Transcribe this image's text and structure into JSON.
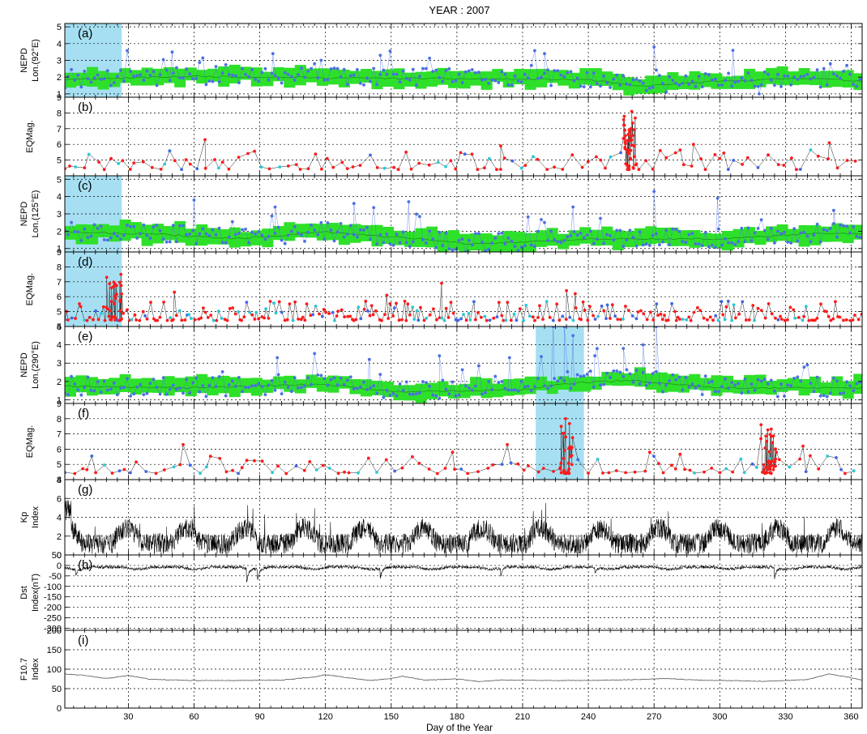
{
  "chart_data": {
    "type": "line",
    "title": "YEAR : 2007",
    "xlabel": "Day of the Year",
    "xlim": [
      1,
      365
    ],
    "x_ticks": [
      30,
      60,
      90,
      120,
      150,
      180,
      210,
      240,
      270,
      300,
      330,
      360
    ],
    "grid": true,
    "highlight_color": "#a6dff2",
    "panels": [
      {
        "id": "a",
        "label": "(a)",
        "ylabel": [
          "NEPD",
          "Lon.(92°E)"
        ],
        "ylim": [
          0.8,
          5.2
        ],
        "y_ticks": [
          1,
          2,
          3,
          4,
          5
        ],
        "kind": "nepd",
        "seed": 11,
        "base_curve": [
          [
            1,
            1.9
          ],
          [
            60,
            2.1
          ],
          [
            130,
            2.0
          ],
          [
            240,
            1.9
          ],
          [
            263,
            1.5
          ],
          [
            300,
            1.8
          ],
          [
            340,
            2.0
          ],
          [
            365,
            1.8
          ]
        ],
        "band_halfwidth": 0.5,
        "spikes": [
          [
            50,
            3.5
          ],
          [
            96,
            3.4
          ],
          [
            145,
            3.3
          ],
          [
            220,
            3.4
          ],
          [
            270,
            3.8
          ],
          [
            306,
            3.6
          ],
          [
            318,
            1.0
          ]
        ],
        "highlight": [
          1,
          27
        ]
      },
      {
        "id": "b",
        "label": "(b)",
        "ylabel": [
          "EQMag."
        ],
        "ylim": [
          4,
          9
        ],
        "y_ticks": [
          5,
          6,
          7,
          8,
          9
        ],
        "kind": "eq",
        "seed": 21,
        "sparse": true,
        "bursts": [
          [
            256,
            262,
            8.1,
            45
          ]
        ],
        "big": [
          [
            65,
            6.3
          ],
          [
            200,
            5.9
          ],
          [
            288,
            6.0
          ],
          [
            350,
            6.1
          ]
        ]
      },
      {
        "id": "c",
        "label": "(c)",
        "ylabel": [
          "NEPD",
          "Lon.(125°E)"
        ],
        "ylim": [
          0.8,
          5.2
        ],
        "y_ticks": [
          1,
          2,
          3,
          4,
          5
        ],
        "kind": "nepd",
        "seed": 31,
        "base_curve": [
          [
            1,
            2.0
          ],
          [
            40,
            1.9
          ],
          [
            80,
            1.6
          ],
          [
            120,
            2.0
          ],
          [
            165,
            1.6
          ],
          [
            185,
            1.3
          ],
          [
            240,
            1.6
          ],
          [
            300,
            1.6
          ],
          [
            340,
            1.9
          ],
          [
            365,
            1.9
          ]
        ],
        "band_halfwidth": 0.5,
        "spikes": [
          [
            60,
            3.8
          ],
          [
            97,
            3.4
          ],
          [
            133,
            3.6
          ],
          [
            158,
            3.7
          ],
          [
            233,
            3.4
          ],
          [
            270,
            4.3
          ],
          [
            299,
            3.9
          ],
          [
            352,
            3.2
          ]
        ],
        "highlight": [
          1,
          27
        ]
      },
      {
        "id": "d",
        "label": "(d)",
        "ylabel": [
          "EQMag."
        ],
        "ylim": [
          4,
          9
        ],
        "y_ticks": [
          4,
          5,
          6,
          7,
          8,
          9
        ],
        "kind": "eq",
        "seed": 41,
        "sparse": false,
        "bursts": [
          [
            20,
            27,
            7.5,
            30
          ]
        ],
        "big": [
          [
            148,
            6.1
          ],
          [
            173,
            6.9
          ],
          [
            230,
            6.4
          ],
          [
            234,
            6.2
          ],
          [
            51,
            6.3
          ]
        ],
        "highlight": [
          1,
          27
        ]
      },
      {
        "id": "e",
        "label": "(e)",
        "ylabel": [
          "NEPD",
          "Lon.(290°E)"
        ],
        "ylim": [
          0.8,
          5.0
        ],
        "y_ticks": [
          1,
          2,
          3,
          4,
          5
        ],
        "kind": "nepd",
        "seed": 51,
        "base_curve": [
          [
            1,
            1.8
          ],
          [
            60,
            1.7
          ],
          [
            120,
            1.9
          ],
          [
            150,
            1.5
          ],
          [
            210,
            1.6
          ],
          [
            235,
            2.0
          ],
          [
            260,
            2.1
          ],
          [
            300,
            1.7
          ],
          [
            365,
            1.7
          ]
        ],
        "band_halfwidth": 0.45,
        "spikes": [
          [
            98,
            3.3
          ],
          [
            140,
            3.2
          ],
          [
            172,
            3.4
          ],
          [
            204,
            3.3
          ],
          [
            224,
            5.0
          ],
          [
            229,
            5.0
          ],
          [
            233,
            4.5
          ],
          [
            243,
            3.4
          ],
          [
            256,
            3.8
          ],
          [
            271,
            5.0
          ],
          [
            265,
            4.0
          ]
        ],
        "highlight": [
          216,
          238
        ]
      },
      {
        "id": "f",
        "label": "(f)",
        "ylabel": [
          "EQMag."
        ],
        "ylim": [
          4,
          9
        ],
        "y_ticks": [
          4,
          5,
          6,
          7,
          8,
          9
        ],
        "kind": "eq",
        "seed": 61,
        "sparse": true,
        "bursts": [
          [
            227,
            233,
            8.0,
            30
          ],
          [
            318,
            326,
            7.6,
            40
          ]
        ],
        "big": [
          [
            203,
            6.3
          ],
          [
            55,
            6.3
          ],
          [
            178,
            5.8
          ],
          [
            338,
            6.2
          ],
          [
            268,
            5.8
          ]
        ],
        "highlight": [
          216,
          238
        ]
      },
      {
        "id": "g",
        "label": "(g)",
        "ylabel": [
          "Kp",
          "Index"
        ],
        "ylim": [
          0,
          8
        ],
        "y_ticks": [
          0,
          2,
          4,
          6,
          8
        ],
        "kind": "kp",
        "seed": 71
      },
      {
        "id": "h",
        "label": "(h)",
        "ylabel": [
          "Dst",
          "Index(nT)"
        ],
        "ylim": [
          -310,
          50
        ],
        "y_ticks": [
          50,
          0,
          -50,
          -100,
          -150,
          -200,
          -250,
          -300
        ],
        "kind": "dst",
        "seed": 81
      },
      {
        "id": "i",
        "label": "(i)",
        "ylabel": [
          "F10.7",
          "Index"
        ],
        "ylim": [
          0,
          200
        ],
        "y_ticks": [
          0,
          50,
          100,
          150,
          200
        ],
        "kind": "f107",
        "seed": 91,
        "curve": [
          [
            1,
            88
          ],
          [
            10,
            84
          ],
          [
            20,
            76
          ],
          [
            30,
            84
          ],
          [
            40,
            74
          ],
          [
            60,
            71
          ],
          [
            80,
            71
          ],
          [
            100,
            72
          ],
          [
            115,
            80
          ],
          [
            120,
            86
          ],
          [
            125,
            82
          ],
          [
            140,
            71
          ],
          [
            150,
            76
          ],
          [
            155,
            82
          ],
          [
            165,
            72
          ],
          [
            180,
            75
          ],
          [
            190,
            68
          ],
          [
            200,
            72
          ],
          [
            220,
            71
          ],
          [
            240,
            71
          ],
          [
            260,
            73
          ],
          [
            275,
            76
          ],
          [
            290,
            72
          ],
          [
            320,
            69
          ],
          [
            340,
            73
          ],
          [
            350,
            88
          ],
          [
            358,
            80
          ],
          [
            365,
            72
          ]
        ]
      }
    ],
    "colors": {
      "band": "#2ee02a",
      "nepd": "#4a6fe3",
      "eq_red": "#ff1a1a",
      "eq_cyan": "#29c8d8",
      "eq_blue": "#3e66e6",
      "index": "#000000",
      "f107": "#555555"
    }
  }
}
